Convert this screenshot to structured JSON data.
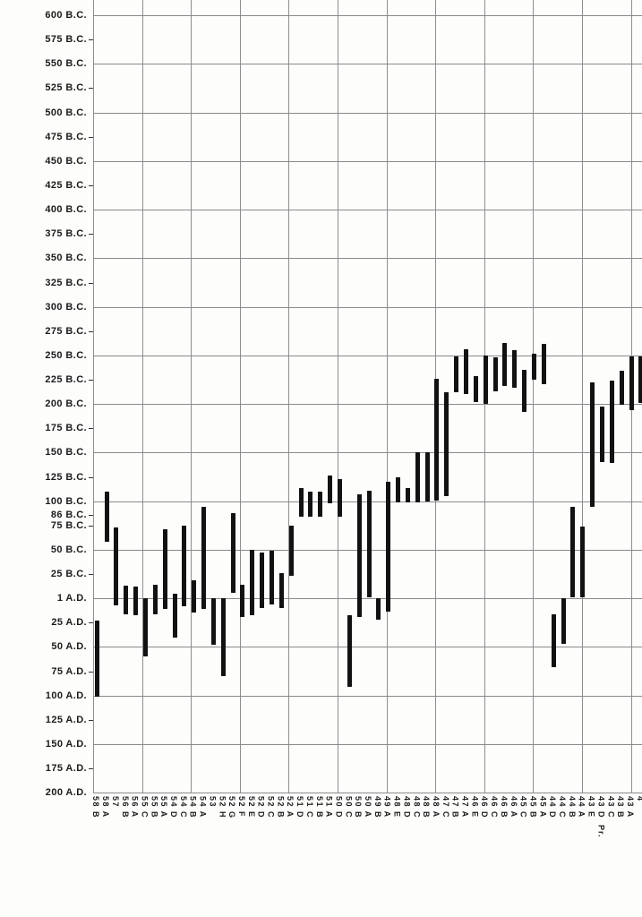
{
  "meta": {
    "background_color": "#fdfdfc",
    "bar_color": "#121212",
    "grid_color": "#8a8a8a",
    "description_of_visible_content": "Scanned floating-bar chart: vertical date ranges per column, no title text visible"
  },
  "chart_data": {
    "type": "bar",
    "variant": "floating-range-vertical",
    "sign_convention": "year values: positive = B.C., negative = A.D., 0 = 1 A.D. line",
    "grid": "on",
    "y_axis": {
      "top_year": 600,
      "bottom_year": -200,
      "gridline_step_years": 50,
      "tick_step_years": 25,
      "labels": [
        {
          "text": "600 B.C.",
          "year": 600
        },
        {
          "text": "575 B.C.",
          "year": 575
        },
        {
          "text": "550 B.C.",
          "year": 550
        },
        {
          "text": "525 B.C.",
          "year": 525
        },
        {
          "text": "500 B.C.",
          "year": 500
        },
        {
          "text": "475 B.C.",
          "year": 475
        },
        {
          "text": "450 B.C.",
          "year": 450
        },
        {
          "text": "425 B.C.",
          "year": 425
        },
        {
          "text": "400 B.C.",
          "year": 400
        },
        {
          "text": "375 B.C.",
          "year": 375
        },
        {
          "text": "350 B.C.",
          "year": 350
        },
        {
          "text": "325 B.C.",
          "year": 325
        },
        {
          "text": "300 B.C.",
          "year": 300
        },
        {
          "text": "275 B.C.",
          "year": 275
        },
        {
          "text": "250 B.C.",
          "year": 250
        },
        {
          "text": "225 B.C.",
          "year": 225
        },
        {
          "text": "200 B.C.",
          "year": 200
        },
        {
          "text": "175 B.C.",
          "year": 175
        },
        {
          "text": "150 B.C.",
          "year": 150
        },
        {
          "text": "125 B.C.",
          "year": 125
        },
        {
          "text": "100 B.C.",
          "year": 100
        },
        {
          "text": "86 B.C.",
          "year": 86
        },
        {
          "text": "75 B.C.",
          "year": 75
        },
        {
          "text": "50 B.C.",
          "year": 50
        },
        {
          "text": "25 B.C.",
          "year": 25
        },
        {
          "text": "1 A.D.",
          "year": 0
        },
        {
          "text": "25 A.D.",
          "year": -25
        },
        {
          "text": "50 A.D.",
          "year": -50
        },
        {
          "text": "75 A.D.",
          "year": -75
        },
        {
          "text": "100 A.D.",
          "year": -100
        },
        {
          "text": "125 A.D.",
          "year": -125
        },
        {
          "text": "150 A.D.",
          "year": -150
        },
        {
          "text": "175 A.D.",
          "year": -175
        },
        {
          "text": "200 A.D.",
          "year": -200
        }
      ],
      "gridline_years": [
        600,
        550,
        500,
        450,
        400,
        350,
        300,
        250,
        200,
        150,
        100,
        50,
        0,
        -50,
        -100,
        -150,
        -200
      ],
      "tick_years": [
        575,
        525,
        475,
        425,
        375,
        325,
        275,
        225,
        175,
        125,
        86,
        75,
        25,
        -25,
        -75,
        -125,
        -175
      ]
    },
    "columns": [
      {
        "label": "58 B",
        "start": -23,
        "end": -101
      },
      {
        "label": "58 A",
        "start": 110,
        "end": 58
      },
      {
        "label": "57",
        "start": 73,
        "end": -7
      },
      {
        "label": "56 B",
        "start": 13,
        "end": -16
      },
      {
        "label": "56 A",
        "start": 12,
        "end": -17
      },
      {
        "label": "55 C",
        "start": 0,
        "end": -60
      },
      {
        "label": "55 B",
        "start": 14,
        "end": -16
      },
      {
        "label": "55 A",
        "start": 71,
        "end": -11
      },
      {
        "label": "54 D",
        "start": 5,
        "end": -40
      },
      {
        "label": "54 C",
        "start": 75,
        "end": -8
      },
      {
        "label": "54 B",
        "start": 19,
        "end": -15
      },
      {
        "label": "54 A",
        "start": 94,
        "end": -11
      },
      {
        "label": "53",
        "start": 0,
        "end": -48
      },
      {
        "label": "52 H",
        "start": 0,
        "end": -80
      },
      {
        "label": "52 G",
        "start": 88,
        "end": 6
      },
      {
        "label": "52 F",
        "start": 14,
        "end": -19
      },
      {
        "label": "52 E",
        "start": 50,
        "end": -17
      },
      {
        "label": "52 D",
        "start": 47,
        "end": -10
      },
      {
        "label": "52 C",
        "start": 49,
        "end": -6
      },
      {
        "label": "52 B",
        "start": 26,
        "end": -10
      },
      {
        "label": "52 A",
        "start": 75,
        "end": 23
      },
      {
        "label": "51 D",
        "start": 114,
        "end": 84
      },
      {
        "label": "51 C",
        "start": 110,
        "end": 84
      },
      {
        "label": "51 B",
        "start": 110,
        "end": 84
      },
      {
        "label": "51 A",
        "start": 126,
        "end": 98
      },
      {
        "label": "50 D",
        "start": 123,
        "end": 84
      },
      {
        "label": "50 C",
        "start": -17,
        "end": -91
      },
      {
        "label": "50 B",
        "start": 107,
        "end": -19
      },
      {
        "label": "50 A",
        "start": 111,
        "end": 1
      },
      {
        "label": "49 B",
        "start": 0,
        "end": -22
      },
      {
        "label": "49 A",
        "start": 120,
        "end": -14
      },
      {
        "label": "48 E",
        "start": 125,
        "end": 99
      },
      {
        "label": "48 D",
        "start": 114,
        "end": 99
      },
      {
        "label": "48 C",
        "start": 150,
        "end": 99
      },
      {
        "label": "48 B",
        "start": 150,
        "end": 100
      },
      {
        "label": "48 A",
        "start": 226,
        "end": 101
      },
      {
        "label": "47 C",
        "start": 212,
        "end": 105
      },
      {
        "label": "47 B",
        "start": 249,
        "end": 212
      },
      {
        "label": "47 A",
        "start": 256,
        "end": 210
      },
      {
        "label": "46 E",
        "start": 229,
        "end": 202
      },
      {
        "label": "46 D",
        "start": 250,
        "end": 200
      },
      {
        "label": "46 C",
        "start": 248,
        "end": 213
      },
      {
        "label": "46 B",
        "start": 263,
        "end": 218
      },
      {
        "label": "46 A",
        "start": 255,
        "end": 217
      },
      {
        "label": "45 C",
        "start": 235,
        "end": 192
      },
      {
        "label": "45 B",
        "start": 252,
        "end": 225
      },
      {
        "label": "45 A",
        "start": 262,
        "end": 220
      },
      {
        "label": "44 D",
        "start": -16,
        "end": -71
      },
      {
        "label": "44 C",
        "start": 0,
        "end": -47
      },
      {
        "label": "44 B",
        "start": 94,
        "end": 1
      },
      {
        "label": "44 A",
        "start": 74,
        "end": 1
      },
      {
        "label": "43 E",
        "start": 222,
        "end": 94
      },
      {
        "label": "43 D",
        "start": 197,
        "end": 140,
        "sub_label": "Pr."
      },
      {
        "label": "43 C",
        "start": 224,
        "end": 139
      },
      {
        "label": "43 B",
        "start": 234,
        "end": 199
      },
      {
        "label": "43 A",
        "start": 249,
        "end": 194
      },
      {
        "label": "4",
        "start": 249,
        "end": 201,
        "clipped_at_right_edge": true
      }
    ]
  }
}
